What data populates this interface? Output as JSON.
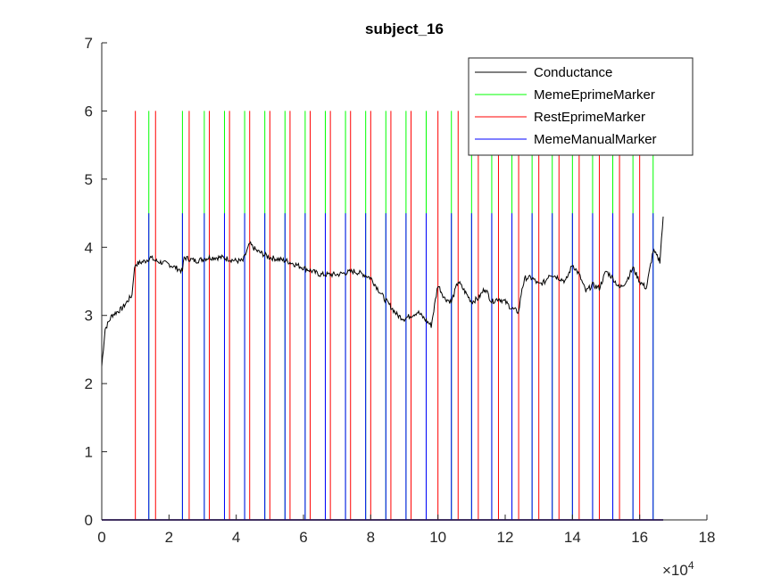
{
  "chart_data": {
    "type": "line",
    "title": "subject_16",
    "xlabel": "",
    "ylabel": "",
    "xlim": [
      0,
      180000
    ],
    "ylim": [
      0,
      7
    ],
    "x_ticks": [
      0,
      20000,
      40000,
      60000,
      80000,
      100000,
      120000,
      140000,
      160000,
      180000
    ],
    "x_tick_labels": [
      "0",
      "2",
      "4",
      "6",
      "8",
      "10",
      "12",
      "14",
      "16",
      "18"
    ],
    "x_exponent_label": "×10",
    "x_exponent_power": "4",
    "y_ticks": [
      0,
      1,
      2,
      3,
      4,
      5,
      6,
      7
    ],
    "y_tick_labels": [
      "0",
      "1",
      "2",
      "3",
      "4",
      "5",
      "6",
      "7"
    ],
    "grid": false,
    "legend_position": "top-right",
    "colors": {
      "conductance": "#000000",
      "meme_eprime": "#00ff00",
      "rest_eprime": "#ff0000",
      "meme_manual": "#0000ff"
    },
    "series": [
      {
        "name": "Conductance",
        "kind": "line",
        "x": [
          0,
          1000,
          3000,
          6000,
          9000,
          9500,
          10000,
          13000,
          14500,
          16000,
          20000,
          24000,
          24500,
          28000,
          32000,
          36000,
          40000,
          42000,
          44000,
          46000,
          50000,
          55000,
          60000,
          65000,
          70000,
          75000,
          78000,
          80000,
          84000,
          88000,
          90000,
          92000,
          94000,
          96000,
          98000,
          100000,
          102000,
          104000,
          106000,
          108000,
          110000,
          112000,
          114000,
          116000,
          118000,
          120000,
          122000,
          124000,
          125000,
          126000,
          128000,
          130000,
          132000,
          133000,
          134000,
          136000,
          138000,
          140000,
          142000,
          144000,
          146000,
          148000,
          150000,
          152000,
          154000,
          156000,
          158000,
          160000,
          162000,
          164000,
          166000,
          167000
        ],
        "y": [
          2.25,
          2.8,
          3.0,
          3.1,
          3.3,
          3.6,
          3.75,
          3.8,
          3.85,
          3.8,
          3.75,
          3.65,
          3.85,
          3.8,
          3.85,
          3.85,
          3.8,
          3.8,
          4.05,
          3.95,
          3.85,
          3.8,
          3.7,
          3.6,
          3.6,
          3.65,
          3.6,
          3.55,
          3.25,
          3.0,
          2.95,
          3.0,
          3.05,
          2.95,
          2.85,
          3.45,
          3.25,
          3.2,
          3.5,
          3.35,
          3.2,
          3.25,
          3.4,
          3.2,
          3.25,
          3.2,
          3.1,
          3.05,
          3.4,
          3.55,
          3.55,
          3.45,
          3.5,
          3.6,
          3.6,
          3.55,
          3.5,
          3.75,
          3.6,
          3.35,
          3.45,
          3.4,
          3.65,
          3.55,
          3.4,
          3.5,
          3.7,
          3.5,
          3.4,
          3.95,
          3.8,
          4.45
        ]
      },
      {
        "name": "MemeEprimeMarker",
        "kind": "stem",
        "baseline": 0,
        "height": 6,
        "x": [
          14000,
          24000,
          30500,
          36500,
          42500,
          48500,
          54500,
          60500,
          66500,
          72500,
          78500,
          84500,
          90500,
          96500,
          104000,
          110000,
          116000,
          122000,
          128000,
          134000,
          140000,
          146000,
          152000,
          158000,
          164000
        ]
      },
      {
        "name": "RestEprimeMarker",
        "kind": "stem",
        "baseline": 0,
        "height": 6,
        "x": [
          10000,
          16000,
          26000,
          32000,
          38000,
          44000,
          50000,
          56000,
          62000,
          68000,
          74000,
          80000,
          86000,
          92000,
          100000,
          106000,
          112000,
          118000,
          124000,
          130000,
          136000,
          142000,
          148000,
          154000,
          160000
        ]
      },
      {
        "name": "MemeManualMarker",
        "kind": "stem",
        "baseline": 0,
        "height": 4.5,
        "x": [
          14000,
          24000,
          30500,
          36500,
          42500,
          48500,
          54500,
          60500,
          66500,
          72500,
          78500,
          84500,
          90500,
          96500,
          104000,
          110000,
          116000,
          122000,
          128000,
          134000,
          140000,
          146000,
          152000,
          158000,
          164000
        ]
      }
    ]
  }
}
